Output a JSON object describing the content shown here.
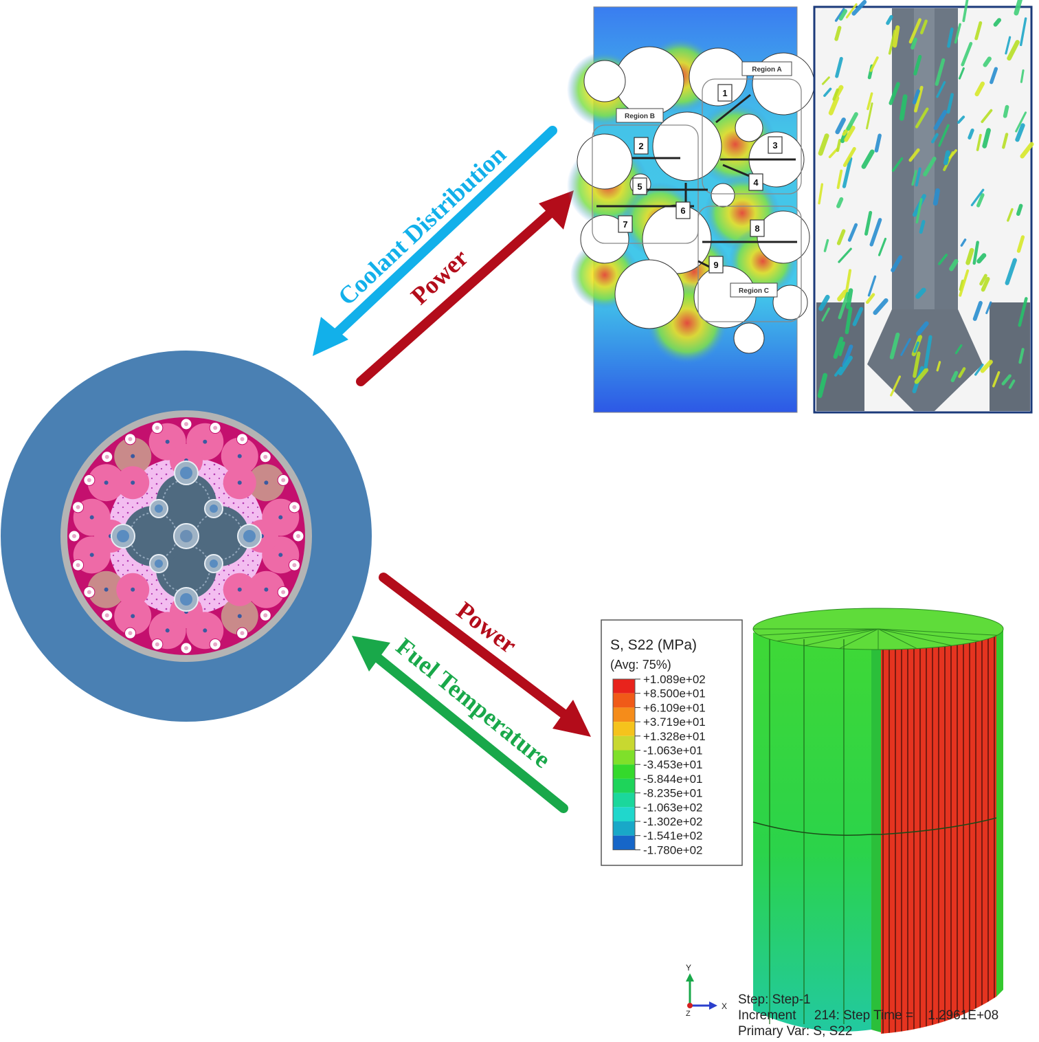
{
  "arrows": {
    "coolant_distribution": {
      "label": "Coolant Distribution",
      "color": "#12b0ea"
    },
    "power_top": {
      "label": "Power",
      "color": "#b30c1a"
    },
    "power_bottom": {
      "label": "Power",
      "color": "#b30c1a"
    },
    "fuel_temperature": {
      "label": "Fuel Temperature",
      "color": "#19a84a"
    }
  },
  "core": {
    "outer_color": "#4a80b3",
    "ring_color": "#b4b4b4",
    "fuel_color": "#ee6aa7",
    "matrix_color": "#c4106e",
    "inner_color": "#f3bdf0",
    "assembly_color": "#4f6a80"
  },
  "cfd_panel": {
    "regions": [
      "Region A",
      "Region B",
      "Region C"
    ],
    "probes": [
      "1",
      "2",
      "3",
      "4",
      "5",
      "6",
      "7",
      "8",
      "9"
    ]
  },
  "stress_legend": {
    "title": "S, S22 (MPa)",
    "subtitle": "(Avg: 75%)",
    "values": [
      "+1.089e+02",
      "+8.500e+01",
      "+6.109e+01",
      "+3.719e+01",
      "+1.328e+01",
      "-1.063e+01",
      "-3.453e+01",
      "-5.844e+01",
      "-8.235e+01",
      "-1.063e+02",
      "-1.302e+02",
      "-1.541e+02",
      "-1.780e+02"
    ],
    "colors": [
      "#e8231c",
      "#f05a18",
      "#f58c1a",
      "#f5c31c",
      "#c8d830",
      "#7fe02a",
      "#34d92c",
      "#1ed45a",
      "#1bd79c",
      "#20d7cc",
      "#19a8c8",
      "#1666c8",
      "#1a2acc"
    ]
  },
  "fea_info": {
    "step": "Step: Step-1",
    "increment": "Increment     214: Step Time =    1.2961E+08",
    "primary_var": "Primary Var: S, S22",
    "axis_y": "Y",
    "axis_x": "X",
    "axis_z": "Z"
  }
}
